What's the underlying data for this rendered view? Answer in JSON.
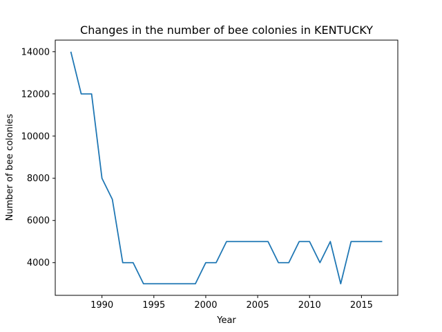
{
  "chart_data": {
    "type": "line",
    "title": "Changes in the number of bee colonies in KENTUCKY",
    "xlabel": "Year",
    "ylabel": "Number of bee colonies",
    "xlim": [
      1985.5,
      2018.5
    ],
    "ylim": [
      2450,
      14550
    ],
    "xticks": [
      1990,
      1995,
      2000,
      2005,
      2010,
      2015
    ],
    "yticks": [
      4000,
      6000,
      8000,
      10000,
      12000,
      14000
    ],
    "grid": false,
    "line_color": "#1f77b4",
    "series": [
      {
        "x": [
          1987,
          1988,
          1989,
          1990,
          1991,
          1992,
          1993,
          1994,
          1995,
          1996,
          1997,
          1998,
          1999,
          2000,
          2001,
          2002,
          2003,
          2004,
          2005,
          2006,
          2007,
          2008,
          2009,
          2010,
          2011,
          2012,
          2013,
          2014,
          2015,
          2016,
          2017
        ],
        "values": [
          14000,
          12000,
          12000,
          8000,
          7000,
          4000,
          4000,
          3000,
          3000,
          3000,
          3000,
          3000,
          3000,
          4000,
          4000,
          5000,
          5000,
          5000,
          5000,
          5000,
          4000,
          4000,
          5000,
          5000,
          4000,
          5000,
          3000,
          5000,
          5000,
          5000,
          5000
        ]
      }
    ]
  }
}
